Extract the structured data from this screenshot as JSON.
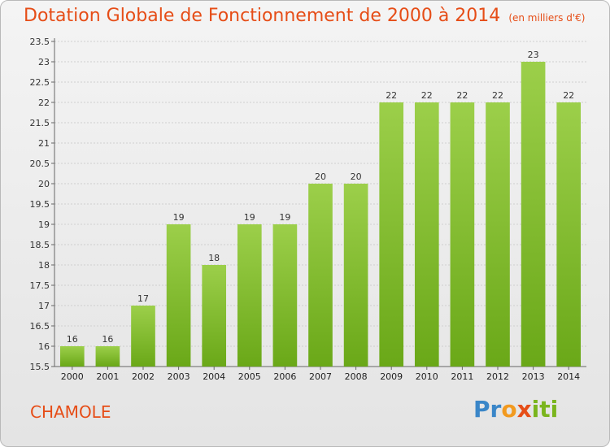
{
  "header": {
    "title": "Dotation Globale de Fonctionnement de 2000 à 2014",
    "unit": "(en milliers d'€)"
  },
  "footer": {
    "commune": "CHAMOLE",
    "logo": {
      "letters": [
        "P",
        "r",
        "o",
        "x",
        "i",
        "t",
        "i"
      ],
      "colors": [
        "#3a86c8",
        "#3a86c8",
        "#f29a1f",
        "#e64d17",
        "#7ab51d",
        "#7ab51d",
        "#7ab51d"
      ]
    }
  },
  "chart_data": {
    "type": "bar",
    "categories": [
      "2000",
      "2001",
      "2002",
      "2003",
      "2004",
      "2005",
      "2006",
      "2007",
      "2008",
      "2009",
      "2010",
      "2011",
      "2012",
      "2013",
      "2014"
    ],
    "values": [
      16,
      16,
      17,
      19,
      18,
      19,
      19,
      20,
      20,
      22,
      22,
      22,
      22,
      23,
      22
    ],
    "data_labels": [
      "16",
      "16",
      "17",
      "19",
      "18",
      "19",
      "19",
      "20",
      "20",
      "22",
      "22",
      "22",
      "22",
      "23",
      "22"
    ],
    "ylim": [
      15.5,
      23.5
    ],
    "yticks": [
      15.5,
      16,
      16.5,
      17,
      17.5,
      18,
      18.5,
      19,
      19.5,
      20,
      20.5,
      21,
      21.5,
      22,
      22.5,
      23,
      23.5
    ],
    "xlabel": "",
    "ylabel": "",
    "grid": true,
    "bar_color_top": "#9ccf4a",
    "bar_color_bottom": "#6aa818"
  }
}
